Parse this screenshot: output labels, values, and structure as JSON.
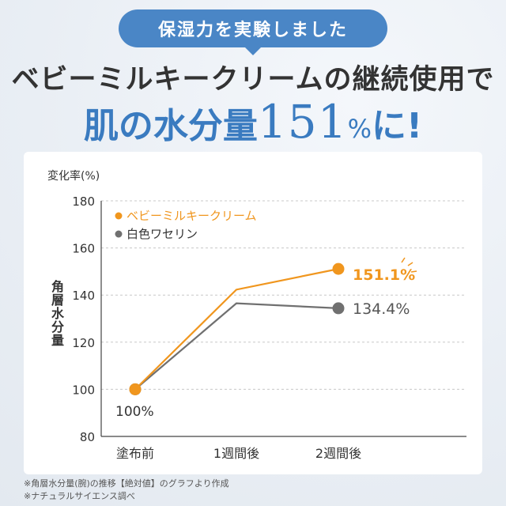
{
  "header": {
    "bubble": "保湿力を実験しました",
    "line1": "ベビーミルキークリームの継続使用で",
    "line2_prefix": "肌の水分量",
    "line2_number": "151",
    "line2_percent": "%",
    "line2_suffix": "に!"
  },
  "chart_data": {
    "type": "line",
    "y_unit_label": "変化率(%)",
    "ylabel": "角層水分量",
    "xlabel": "",
    "categories": [
      "塗布前",
      "1週間後",
      "2週間後"
    ],
    "ylim": [
      80,
      180
    ],
    "yticks": [
      80,
      100,
      120,
      140,
      160,
      180
    ],
    "grid": "horizontal-dashed",
    "legend_position": "top-left",
    "series": [
      {
        "name": "ベビーミルキークリーム",
        "color": "#f0961e",
        "values": [
          100,
          142.3,
          151.1
        ]
      },
      {
        "name": "白色ワセリン",
        "color": "#707070",
        "values": [
          100,
          136.5,
          134.4
        ]
      }
    ],
    "annotations": {
      "start": "100%",
      "series0_end": "151.1%",
      "series1_end": "134.4%"
    }
  },
  "footnotes": [
    "※角層水分量(腕)の推移【絶対値】のグラフより作成",
    "※ナチュラルサイエンス調べ"
  ]
}
